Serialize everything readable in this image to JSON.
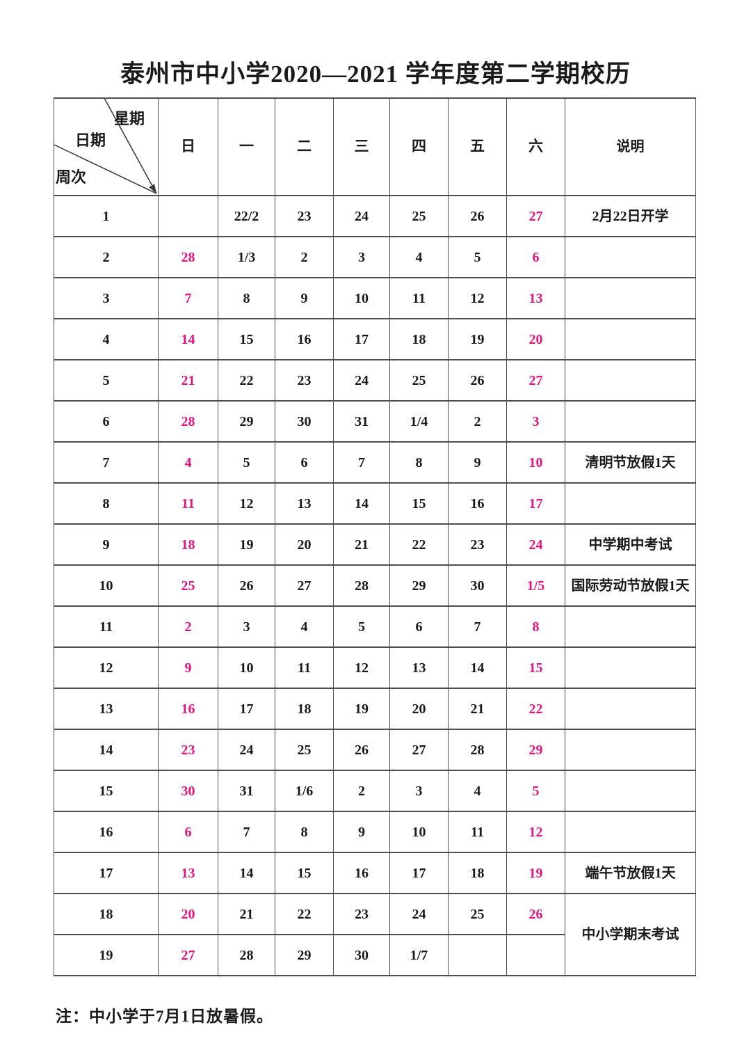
{
  "title": "泰州市中小学2020—2021 学年度第二学期校历",
  "table": {
    "corner": {
      "week": "星期",
      "date": "日期",
      "week_no": "周次"
    },
    "day_headers": [
      "日",
      "一",
      "二",
      "三",
      "四",
      "五",
      "六"
    ],
    "note_header": "说明",
    "rows": [
      {
        "week": "1",
        "days": [
          {
            "t": ""
          },
          {
            "t": "22/2"
          },
          {
            "t": "23"
          },
          {
            "t": "24"
          },
          {
            "t": "25"
          },
          {
            "t": "26"
          },
          {
            "t": "27",
            "hl": true
          }
        ],
        "note": "2月22日开学"
      },
      {
        "week": "2",
        "days": [
          {
            "t": "28",
            "hl": true
          },
          {
            "t": "1/3"
          },
          {
            "t": "2"
          },
          {
            "t": "3"
          },
          {
            "t": "4"
          },
          {
            "t": "5"
          },
          {
            "t": "6",
            "hl": true
          }
        ],
        "note": ""
      },
      {
        "week": "3",
        "days": [
          {
            "t": "7",
            "hl": true
          },
          {
            "t": "8"
          },
          {
            "t": "9"
          },
          {
            "t": "10"
          },
          {
            "t": "11"
          },
          {
            "t": "12"
          },
          {
            "t": "13",
            "hl": true
          }
        ],
        "note": ""
      },
      {
        "week": "4",
        "days": [
          {
            "t": "14",
            "hl": true
          },
          {
            "t": "15"
          },
          {
            "t": "16"
          },
          {
            "t": "17"
          },
          {
            "t": "18"
          },
          {
            "t": "19"
          },
          {
            "t": "20",
            "hl": true
          }
        ],
        "note": ""
      },
      {
        "week": "5",
        "days": [
          {
            "t": "21",
            "hl": true
          },
          {
            "t": "22"
          },
          {
            "t": "23"
          },
          {
            "t": "24"
          },
          {
            "t": "25"
          },
          {
            "t": "26"
          },
          {
            "t": "27",
            "hl": true
          }
        ],
        "note": ""
      },
      {
        "week": "6",
        "days": [
          {
            "t": "28",
            "hl": true
          },
          {
            "t": "29"
          },
          {
            "t": "30"
          },
          {
            "t": "31"
          },
          {
            "t": "1/4"
          },
          {
            "t": "2"
          },
          {
            "t": "3",
            "hl": true
          }
        ],
        "note": ""
      },
      {
        "week": "7",
        "days": [
          {
            "t": "4",
            "hl": true
          },
          {
            "t": "5"
          },
          {
            "t": "6"
          },
          {
            "t": "7"
          },
          {
            "t": "8"
          },
          {
            "t": "9"
          },
          {
            "t": "10",
            "hl": true
          }
        ],
        "note": "清明节放假1天"
      },
      {
        "week": "8",
        "days": [
          {
            "t": "11",
            "hl": true
          },
          {
            "t": "12"
          },
          {
            "t": "13"
          },
          {
            "t": "14"
          },
          {
            "t": "15"
          },
          {
            "t": "16"
          },
          {
            "t": "17",
            "hl": true
          }
        ],
        "note": ""
      },
      {
        "week": "9",
        "days": [
          {
            "t": "18",
            "hl": true
          },
          {
            "t": "19"
          },
          {
            "t": "20"
          },
          {
            "t": "21"
          },
          {
            "t": "22"
          },
          {
            "t": "23"
          },
          {
            "t": "24",
            "hl": true
          }
        ],
        "note": "中学期中考试"
      },
      {
        "week": "10",
        "days": [
          {
            "t": "25",
            "hl": true
          },
          {
            "t": "26"
          },
          {
            "t": "27"
          },
          {
            "t": "28"
          },
          {
            "t": "29"
          },
          {
            "t": "30"
          },
          {
            "t": "1/5",
            "hl": true
          }
        ],
        "note": "国际劳动节放假1天"
      },
      {
        "week": "11",
        "days": [
          {
            "t": "2",
            "hl": true
          },
          {
            "t": "3"
          },
          {
            "t": "4"
          },
          {
            "t": "5"
          },
          {
            "t": "6"
          },
          {
            "t": "7"
          },
          {
            "t": "8",
            "hl": true
          }
        ],
        "note": ""
      },
      {
        "week": "12",
        "days": [
          {
            "t": "9",
            "hl": true
          },
          {
            "t": "10"
          },
          {
            "t": "11"
          },
          {
            "t": "12"
          },
          {
            "t": "13"
          },
          {
            "t": "14"
          },
          {
            "t": "15",
            "hl": true
          }
        ],
        "note": ""
      },
      {
        "week": "13",
        "days": [
          {
            "t": "16",
            "hl": true
          },
          {
            "t": "17"
          },
          {
            "t": "18"
          },
          {
            "t": "19"
          },
          {
            "t": "20"
          },
          {
            "t": "21"
          },
          {
            "t": "22",
            "hl": true
          }
        ],
        "note": ""
      },
      {
        "week": "14",
        "days": [
          {
            "t": "23",
            "hl": true
          },
          {
            "t": "24"
          },
          {
            "t": "25"
          },
          {
            "t": "26"
          },
          {
            "t": "27"
          },
          {
            "t": "28"
          },
          {
            "t": "29",
            "hl": true
          }
        ],
        "note": ""
      },
      {
        "week": "15",
        "days": [
          {
            "t": "30",
            "hl": true
          },
          {
            "t": "31"
          },
          {
            "t": "1/6"
          },
          {
            "t": "2"
          },
          {
            "t": "3"
          },
          {
            "t": "4"
          },
          {
            "t": "5",
            "hl": true
          }
        ],
        "note": ""
      },
      {
        "week": "16",
        "days": [
          {
            "t": "6",
            "hl": true
          },
          {
            "t": "7"
          },
          {
            "t": "8"
          },
          {
            "t": "9"
          },
          {
            "t": "10"
          },
          {
            "t": "11"
          },
          {
            "t": "12",
            "hl": true
          }
        ],
        "note": ""
      },
      {
        "week": "17",
        "days": [
          {
            "t": "13",
            "hl": true
          },
          {
            "t": "14"
          },
          {
            "t": "15"
          },
          {
            "t": "16"
          },
          {
            "t": "17"
          },
          {
            "t": "18"
          },
          {
            "t": "19",
            "hl": true
          }
        ],
        "note": "端午节放假1天"
      },
      {
        "week": "18",
        "days": [
          {
            "t": "20",
            "hl": true
          },
          {
            "t": "21"
          },
          {
            "t": "22"
          },
          {
            "t": "23"
          },
          {
            "t": "24"
          },
          {
            "t": "25"
          },
          {
            "t": "26",
            "hl": true
          }
        ],
        "note": "中小学期末考试",
        "note_rowspan": 2
      },
      {
        "week": "19",
        "days": [
          {
            "t": "27",
            "hl": true
          },
          {
            "t": "28"
          },
          {
            "t": "29"
          },
          {
            "t": "30"
          },
          {
            "t": "1/7"
          },
          {
            "t": ""
          },
          {
            "t": ""
          }
        ],
        "skip_note": true
      }
    ]
  },
  "footnote": "注：中小学于7月1日放暑假。",
  "colors": {
    "highlight": "#e8137f",
    "text": "#1a1a1a",
    "grid": "#4e4e4e"
  }
}
